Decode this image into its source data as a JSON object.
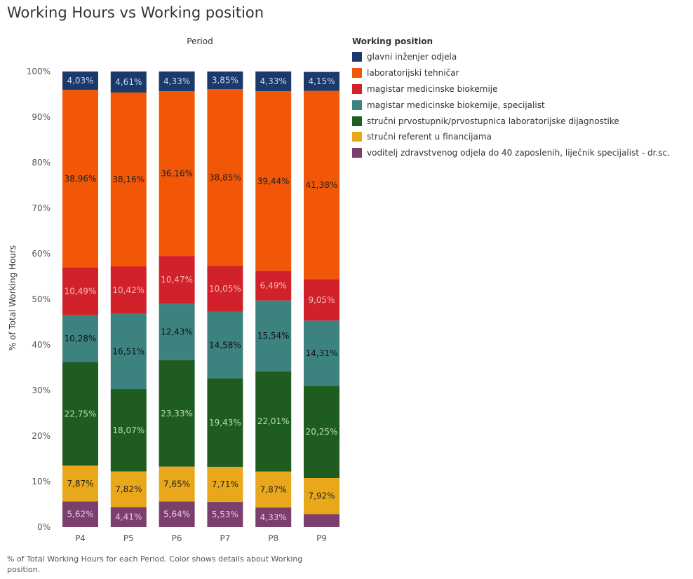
{
  "chart_data": {
    "type": "bar",
    "stacked": true,
    "title": "Working Hours vs Working position",
    "column_header": "Period",
    "ylabel": "% of Total Working Hours",
    "ylim": [
      0,
      100
    ],
    "yticks": [
      "0%",
      "10%",
      "20%",
      "30%",
      "40%",
      "50%",
      "60%",
      "70%",
      "80%",
      "90%",
      "100%"
    ],
    "legend_title": "Working position",
    "legend_position": "right",
    "categories": [
      "P4",
      "P5",
      "P6",
      "P7",
      "P8",
      "P9"
    ],
    "series": [
      {
        "name": "voditelj zdravstvenog odjela do 40 zaposlenih, liječnik specijalist - dr.sc.",
        "color": "#7b3f6e",
        "values": [
          5.62,
          4.41,
          5.64,
          5.53,
          4.33,
          2.85
        ],
        "labels": [
          "5,62%",
          "4,41%",
          "5,64%",
          "5,53%",
          "4,33%",
          ""
        ]
      },
      {
        "name": "stručni referent u financijama",
        "color": "#e9a81b",
        "values": [
          7.87,
          7.82,
          7.65,
          7.71,
          7.87,
          7.92
        ],
        "labels": [
          "7,87%",
          "7,82%",
          "7,65%",
          "7,71%",
          "7,87%",
          "7,92%"
        ]
      },
      {
        "name": "stručni prvostupnik/prvostupnica laboratorijske dijagnostike",
        "color": "#1f5c1f",
        "values": [
          22.75,
          18.07,
          23.33,
          19.43,
          22.01,
          20.25
        ],
        "labels": [
          "22,75%",
          "18,07%",
          "23,33%",
          "19,43%",
          "22,01%",
          "20,25%"
        ]
      },
      {
        "name": "magistar medicinske biokemije, specijalist",
        "color": "#3c8380",
        "values": [
          10.28,
          16.51,
          12.43,
          14.58,
          15.54,
          14.31
        ],
        "labels": [
          "10,28%",
          "16,51%",
          "12,43%",
          "14,58%",
          "15,54%",
          "14,31%"
        ]
      },
      {
        "name": "magistar medicinske biokemije",
        "color": "#d1222b",
        "values": [
          10.49,
          10.42,
          10.47,
          10.05,
          6.49,
          9.05
        ],
        "labels": [
          "10,49%",
          "10,42%",
          "10,47%",
          "10,05%",
          "6,49%",
          "9,05%"
        ]
      },
      {
        "name": "laboratorijski tehničar",
        "color": "#f25607",
        "values": [
          38.96,
          38.16,
          36.16,
          38.85,
          39.44,
          41.38
        ],
        "labels": [
          "38,96%",
          "38,16%",
          "36,16%",
          "38,85%",
          "39,44%",
          "41,38%"
        ]
      },
      {
        "name": "glavni inženjer odjela",
        "color": "#1b3a6b",
        "values": [
          4.03,
          4.61,
          4.33,
          3.85,
          4.33,
          4.15
        ],
        "labels": [
          "4,03%",
          "4,61%",
          "4,33%",
          "3,85%",
          "4,33%",
          "4,15%"
        ]
      }
    ],
    "legend_order": [
      "glavni inženjer odjela",
      "laboratorijski tehničar",
      "magistar medicinske biokemije",
      "magistar medicinske biokemije, specijalist",
      "stručni prvostupnik/prvostupnica laboratorijske dijagnostike",
      "stručni referent u financijama",
      "voditelj zdravstvenog odjela do 40 zaposlenih, liječnik specijalist - dr.sc."
    ],
    "label_colors": {
      "glavni inženjer odjela": "#c9d6ea",
      "laboratorijski tehničar": "#222222",
      "magistar medicinske biokemije": "#f3b7b0",
      "magistar medicinske biokemije, specijalist": "#111111",
      "stručni prvostupnik/prvostupnica laboratorijske dijagnostike": "#b9dfb0",
      "stručni referent u financijama": "#222222",
      "voditelj zdravstvenog odjela do 40 zaposlenih, liječnik specijalist - dr.sc.": "#e5c9df"
    }
  },
  "caption": "% of Total Working Hours for each Period.  Color shows details about Working position."
}
